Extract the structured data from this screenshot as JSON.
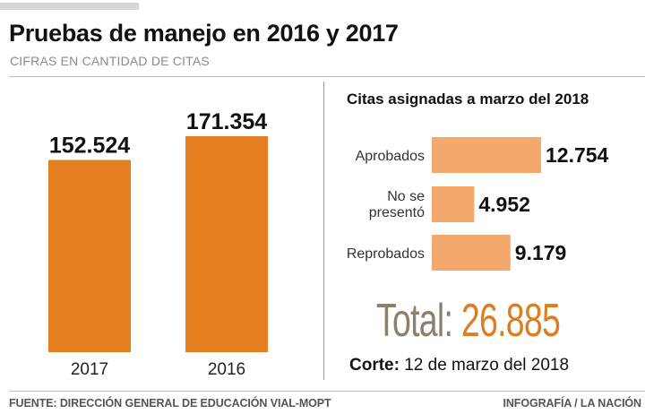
{
  "header": {
    "title": "Pruebas de manejo en 2016 y 2017",
    "subtitle": "CIFRAS EN CANTIDAD DE CITAS"
  },
  "colors": {
    "primary_bar": "#e67e22",
    "secondary_bar": "#f2a96b",
    "total_label": "#8c806b",
    "total_value": "#e07c20"
  },
  "chart_data": [
    {
      "type": "bar",
      "title": "Pruebas de manejo en 2016 y 2017",
      "subtitle": "CIFRAS EN CANTIDAD DE CITAS",
      "categories": [
        "2017",
        "2016"
      ],
      "values": [
        152524,
        171354
      ],
      "value_labels": [
        "152.524",
        "171.354"
      ],
      "xlabel": "",
      "ylabel": "",
      "ylim": [
        0,
        190000
      ],
      "grid": false,
      "orientation": "vertical"
    },
    {
      "type": "bar",
      "title": "Citas asignadas a marzo del 2018",
      "categories": [
        "Aprobados",
        "No se presentó",
        "Reprobados"
      ],
      "category_lines": [
        [
          "Aprobados"
        ],
        [
          "No se",
          "presentó"
        ],
        [
          "Reprobados"
        ]
      ],
      "values": [
        12754,
        4952,
        9179
      ],
      "value_labels": [
        "12.754",
        "4.952",
        "9.179"
      ],
      "xlim": [
        0,
        12754
      ],
      "grid": false,
      "orientation": "horizontal"
    }
  ],
  "summary": {
    "total_label": "Total:",
    "total_value": "26.885",
    "corte_label": "Corte:",
    "corte_value": "12 de marzo del 2018"
  },
  "footer": {
    "source": "FUENTE: DIRECCIÓN GENERAL DE EDUCACIÓN VIAL-MOPT",
    "credit": "INFOGRAFÍA / LA NACIÓN"
  }
}
